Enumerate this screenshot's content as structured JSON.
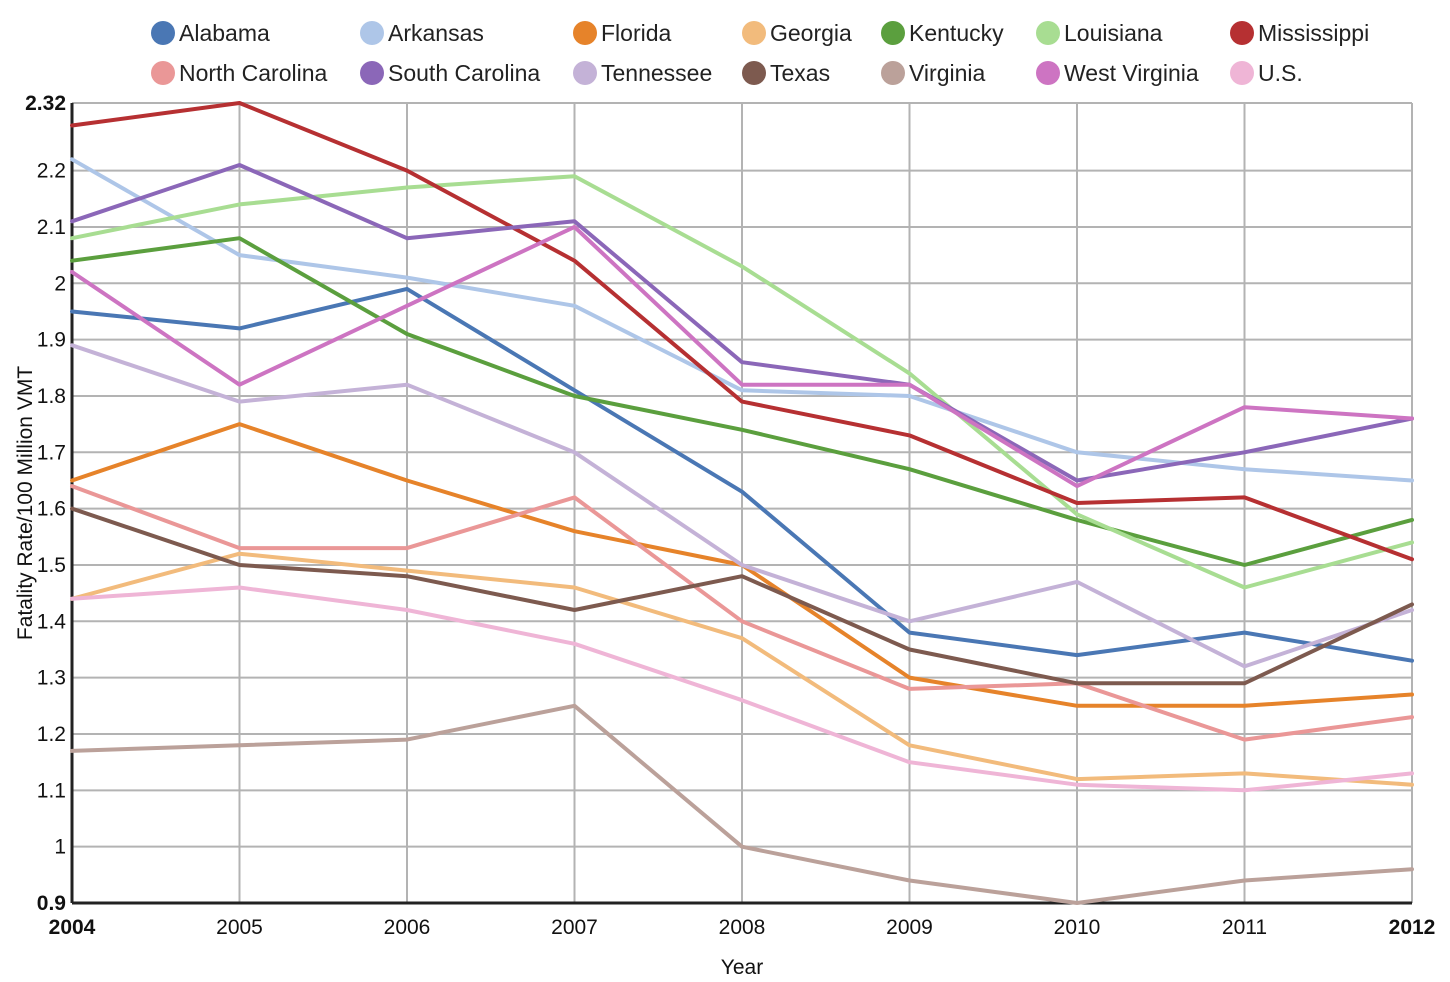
{
  "chart_data": {
    "type": "line",
    "xlabel": "Year",
    "ylabel": "Fatality Rate/100 Million VMT",
    "x": [
      "2004",
      "2005",
      "2006",
      "2007",
      "2008",
      "2009",
      "2010",
      "2011",
      "2012"
    ],
    "bold_x_ticks": [
      "2004",
      "2012"
    ],
    "ylim": [
      0.9,
      2.32
    ],
    "y_ticks": [
      0.9,
      1,
      1.1,
      1.2,
      1.3,
      1.4,
      1.5,
      1.6,
      1.7,
      1.8,
      1.9,
      2,
      2.1,
      2.2,
      2.32
    ],
    "y_tick_labels": [
      "0.9",
      "1",
      "1.1",
      "1.2",
      "1.3",
      "1.4",
      "1.5",
      "1.6",
      "1.7",
      "1.8",
      "1.9",
      "2",
      "2.1",
      "2.2",
      "2.32"
    ],
    "bold_y_ticks": [
      "0.9",
      "2.32"
    ],
    "grid": true,
    "legend_position": "top",
    "series": [
      {
        "name": "Alabama",
        "color": "#4a77b4",
        "values": [
          1.95,
          1.92,
          1.99,
          1.81,
          1.63,
          1.38,
          1.34,
          1.38,
          1.33
        ]
      },
      {
        "name": "Arkansas",
        "color": "#aec6e8",
        "values": [
          2.22,
          2.05,
          2.01,
          1.96,
          1.81,
          1.8,
          1.7,
          1.67,
          1.65
        ]
      },
      {
        "name": "Florida",
        "color": "#e6832a",
        "values": [
          1.65,
          1.75,
          1.65,
          1.56,
          1.5,
          1.3,
          1.25,
          1.25,
          1.27
        ]
      },
      {
        "name": "Georgia",
        "color": "#f2bb7c",
        "values": [
          1.44,
          1.52,
          1.49,
          1.46,
          1.37,
          1.18,
          1.12,
          1.13,
          1.11
        ]
      },
      {
        "name": "Kentucky",
        "color": "#5b9f3e",
        "values": [
          2.04,
          2.08,
          1.91,
          1.8,
          1.74,
          1.67,
          1.58,
          1.5,
          1.58
        ]
      },
      {
        "name": "Louisiana",
        "color": "#a8dd92",
        "values": [
          2.08,
          2.14,
          2.17,
          2.19,
          2.03,
          1.84,
          1.59,
          1.46,
          1.54
        ]
      },
      {
        "name": "Mississippi",
        "color": "#b63032",
        "values": [
          2.28,
          2.32,
          2.2,
          2.04,
          1.79,
          1.73,
          1.61,
          1.62,
          1.51
        ]
      },
      {
        "name": "North Carolina",
        "color": "#ea9797",
        "values": [
          1.64,
          1.53,
          1.53,
          1.62,
          1.4,
          1.28,
          1.29,
          1.19,
          1.23
        ]
      },
      {
        "name": "South Carolina",
        "color": "#8b67b8",
        "values": [
          2.11,
          2.21,
          2.08,
          2.11,
          1.86,
          1.82,
          1.65,
          1.7,
          1.76
        ]
      },
      {
        "name": "Tennessee",
        "color": "#c4b2d7",
        "values": [
          1.89,
          1.79,
          1.82,
          1.7,
          1.5,
          1.4,
          1.47,
          1.32,
          1.42
        ]
      },
      {
        "name": "Texas",
        "color": "#7d5a4f",
        "values": [
          1.6,
          1.5,
          1.48,
          1.42,
          1.48,
          1.35,
          1.29,
          1.29,
          1.43
        ]
      },
      {
        "name": "Virginia",
        "color": "#bba19a",
        "values": [
          1.17,
          1.18,
          1.19,
          1.25,
          1.0,
          0.94,
          0.9,
          0.94,
          0.96
        ]
      },
      {
        "name": "West Virginia",
        "color": "#cd74c2",
        "values": [
          2.02,
          1.82,
          1.96,
          2.1,
          1.82,
          1.82,
          1.64,
          1.78,
          1.76
        ]
      },
      {
        "name": "U.S.",
        "color": "#efb5d6",
        "values": [
          1.44,
          1.46,
          1.42,
          1.36,
          1.26,
          1.15,
          1.11,
          1.1,
          1.13
        ]
      }
    ]
  }
}
